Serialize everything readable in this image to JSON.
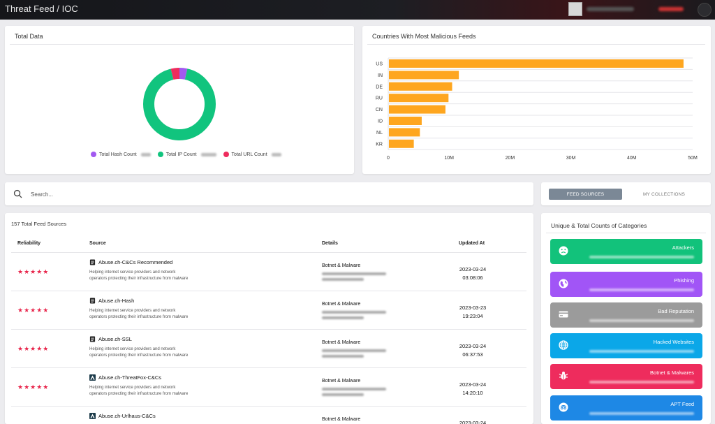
{
  "header": {
    "title": "Threat Feed / IOC"
  },
  "total_data": {
    "title": "Total Data",
    "legend": [
      {
        "label": "Total Hash Count",
        "color": "#a259f0"
      },
      {
        "label": "Total IP Count",
        "color": "#11c47e"
      },
      {
        "label": "Total URL Count",
        "color": "#ee2c5d"
      }
    ],
    "donut_shares": [
      0.035,
      0.925,
      0.04
    ]
  },
  "countries": {
    "title": "Countries With Most Malicious Feeds",
    "bar_color": "#fea61f"
  },
  "chart_data": {
    "type": "bar",
    "orientation": "horizontal",
    "categories": [
      "US",
      "IN",
      "DE",
      "RU",
      "CN",
      "ID",
      "NL",
      "KR"
    ],
    "values": [
      48500000,
      11600000,
      10500000,
      9900000,
      9400000,
      5500000,
      5200000,
      4200000
    ],
    "x_ticks": [
      "0",
      "10M",
      "20M",
      "30M",
      "40M",
      "50M"
    ],
    "xlim": [
      0,
      50000000
    ],
    "grid": true
  },
  "search": {
    "placeholder": "Search..."
  },
  "tabs": {
    "active": "FEED SOURCES",
    "inactive": "MY COLLECTIONS"
  },
  "feeds": {
    "title": "157 Total Feed Sources",
    "columns": [
      "Reliability",
      "Source",
      "Details",
      "Updated At"
    ],
    "rows": [
      {
        "stars": "★★★★★",
        "name": "Abuse.ch-C&Cs Recommended",
        "icon": "document-icon",
        "desc": "Helping internet service providers and network operators protecting their infrastructure from malware",
        "category": "Botnet & Malware",
        "date": "2023-03-24",
        "time": "03:08:06"
      },
      {
        "stars": "★★★★★",
        "name": "Abuse.ch-Hash",
        "icon": "document-icon",
        "desc": "Helping internet service providers and network operators protecting their infrastructure from malware",
        "category": "Botnet & Malware",
        "date": "2023-03-23",
        "time": "19:23:04"
      },
      {
        "stars": "★★★★★",
        "name": "Abuse.ch-SSL",
        "icon": "document-icon",
        "desc": "Helping internet service providers and network operators protecting their infrastructure from malware",
        "category": "Botnet & Malware",
        "date": "2023-03-24",
        "time": "06:37:53"
      },
      {
        "stars": "★★★★★",
        "name": "Abuse.ch-ThreatFox-C&Cs",
        "icon": "threatfox-icon",
        "desc": "Helping internet service providers and network operators protecting their infrastructure from malware",
        "category": "Botnet & Malware",
        "date": "2023-03-24",
        "time": "14:20:10"
      },
      {
        "stars": "",
        "name": "Abuse.ch-Urlhaus-C&Cs",
        "icon": "threatfox-icon",
        "desc": "",
        "category": "Botnet & Malware",
        "date": "2023-03-24",
        "time": ""
      }
    ]
  },
  "categories": {
    "title": "Unique & Total Counts of Categories",
    "items": [
      {
        "label": "Attackers",
        "color": "#12c27b",
        "icon": "sad-face-icon"
      },
      {
        "label": "Phishing",
        "color": "#a155f6",
        "icon": "globe-icon"
      },
      {
        "label": "Bad Reputation",
        "color": "#9b9b9b",
        "icon": "credit-card-icon"
      },
      {
        "label": "Hacked Websites",
        "color": "#0ba7e8",
        "icon": "web-globe-icon"
      },
      {
        "label": "Botnet & Malwares",
        "color": "#ee2c5d",
        "icon": "bug-icon"
      },
      {
        "label": "APT Feed",
        "color": "#1e88e5",
        "icon": "spy-icon"
      }
    ]
  }
}
